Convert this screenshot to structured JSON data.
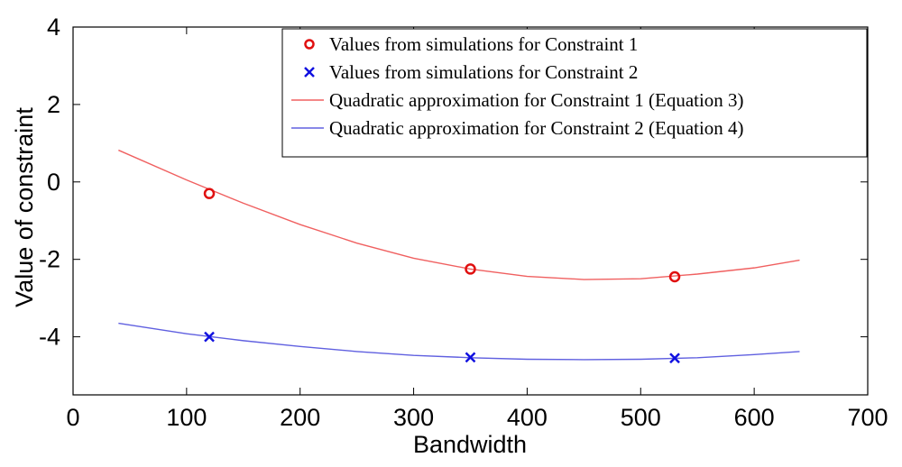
{
  "chart_data": {
    "type": "line",
    "xlabel": "Bandwidth",
    "ylabel": "Value of constraint",
    "xlim": [
      0,
      700
    ],
    "ylim": [
      -5.5,
      4
    ],
    "xticks": [
      0,
      100,
      200,
      300,
      400,
      500,
      600,
      700
    ],
    "yticks": [
      -4,
      -2,
      0,
      2,
      4
    ],
    "grid": false,
    "legend_position": "top-right",
    "series": [
      {
        "name": "Values from simulations for Constraint 1",
        "kind": "scatter",
        "marker": "circle",
        "color": "#e01010",
        "x": [
          120,
          350,
          530
        ],
        "y": [
          -0.3,
          -2.25,
          -2.45
        ]
      },
      {
        "name": "Values from simulations for Constraint 2",
        "kind": "scatter",
        "marker": "x",
        "color": "#1010e0",
        "x": [
          120,
          350,
          530
        ],
        "y": [
          -4.0,
          -4.53,
          -4.55
        ]
      },
      {
        "name": "Quadratic approximation for Constraint 1 (Equation 3)",
        "kind": "line",
        "color": "#f06060",
        "x": [
          40,
          100,
          150,
          200,
          250,
          300,
          350,
          400,
          450,
          500,
          550,
          600,
          640
        ],
        "y": [
          0.82,
          0.05,
          -0.55,
          -1.1,
          -1.58,
          -1.97,
          -2.25,
          -2.44,
          -2.52,
          -2.5,
          -2.38,
          -2.22,
          -2.02
        ]
      },
      {
        "name": "Quadratic approximation for Constraint 2 (Equation 4)",
        "kind": "line",
        "color": "#6060e0",
        "x": [
          40,
          100,
          150,
          200,
          250,
          300,
          350,
          400,
          450,
          500,
          550,
          600,
          640
        ],
        "y": [
          -3.65,
          -3.92,
          -4.1,
          -4.25,
          -4.38,
          -4.48,
          -4.54,
          -4.58,
          -4.59,
          -4.58,
          -4.54,
          -4.46,
          -4.38
        ]
      }
    ]
  }
}
